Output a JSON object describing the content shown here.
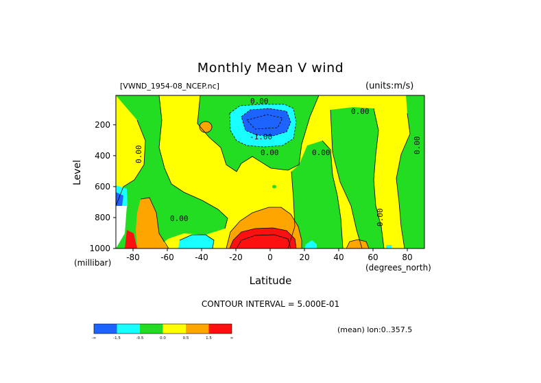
{
  "chart_data": {
    "type": "heatmap",
    "title": "Monthly Mean V wind",
    "dataset": "[VWND_1954-08_NCEP.nc]",
    "units": "(units:m/s)",
    "xlabel": "Latitude",
    "xunit": "(degrees_north)",
    "ylabel": "Level",
    "yunit": "(millibar)",
    "xlim": [
      -90,
      90
    ],
    "ylim": [
      1000,
      10
    ],
    "x_ticks": [
      "-80",
      "-60",
      "-40",
      "-20",
      "0",
      "20",
      "40",
      "60",
      "80"
    ],
    "y_ticks": [
      "200",
      "400",
      "600",
      "800",
      "1000"
    ],
    "contour_interval": "CONTOUR INTERVAL = 5.000E-01",
    "mean_note": "(mean) lon:0..357.5",
    "contour_labels": [
      "0.00",
      "0.00",
      "0.00",
      "0.00",
      "0.00",
      "0.00",
      "0.00",
      "0.00",
      "-1.00"
    ],
    "colorbar": {
      "labels": [
        "-∞",
        "-1.5",
        "-0.5",
        "0.0",
        "0.5",
        "1.5",
        "∞"
      ],
      "colors": [
        "#1c63ff",
        "#19ffff",
        "#22dd22",
        "#ffff00",
        "#ffa500",
        "#ff1010"
      ]
    },
    "regions": {
      "very_negative": "#1c63ff",
      "negative": "#19ffff",
      "slightly_negative": "#22dd22",
      "slightly_positive": "#ffff00",
      "positive": "#ffa500",
      "very_positive": "#ff1010"
    }
  }
}
